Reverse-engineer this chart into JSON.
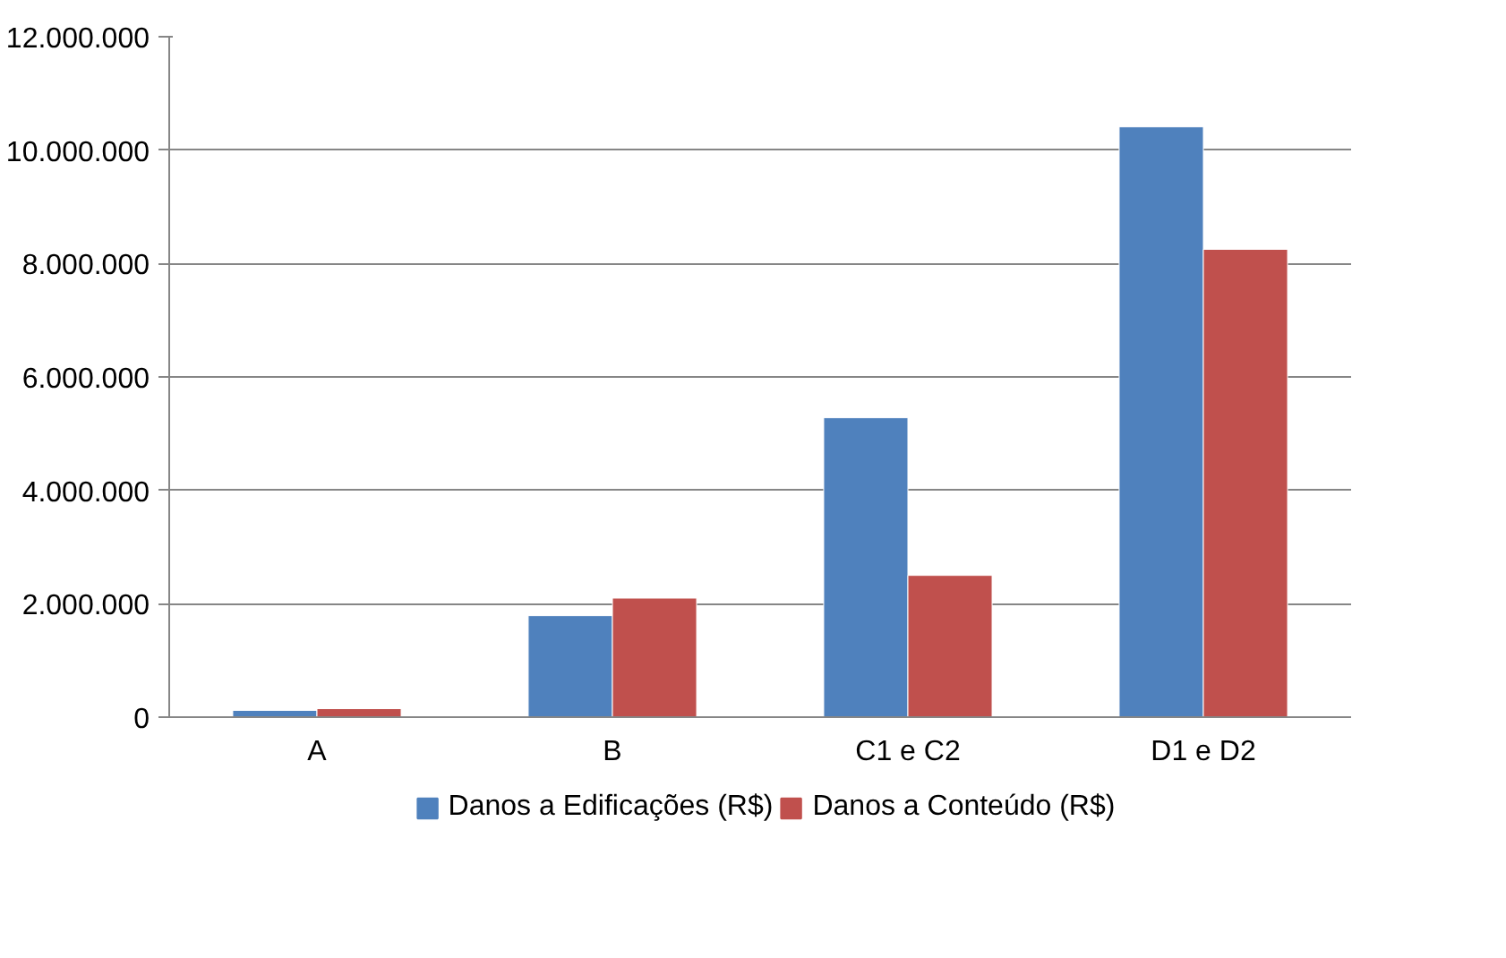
{
  "chart_data": {
    "type": "bar",
    "categories": [
      "A",
      "B",
      "C1 e C2",
      "D1 e D2"
    ],
    "series": [
      {
        "name": "Danos a Edificações (R$)",
        "color": "#4f81bd",
        "values": [
          120000,
          1790000,
          5280000,
          10410000
        ]
      },
      {
        "name": "Danos a Conteúdo (R$)",
        "color": "#c0504d",
        "values": [
          150000,
          2100000,
          2500000,
          8250000
        ]
      }
    ],
    "ylim": [
      0,
      12000000
    ],
    "yticks": [
      0,
      {
        "value": 2000000,
        "label": "2.000.000"
      },
      {
        "value": 4000000,
        "label": "4.000.000"
      },
      {
        "value": 6000000,
        "label": "6.000.000"
      },
      {
        "value": 8000000,
        "label": "8.000.000"
      },
      {
        "value": 10000000,
        "label": "10.000.000"
      },
      {
        "value": 12000000,
        "label": "12.000.000"
      }
    ],
    "grid": "y",
    "legend": "bottom"
  }
}
